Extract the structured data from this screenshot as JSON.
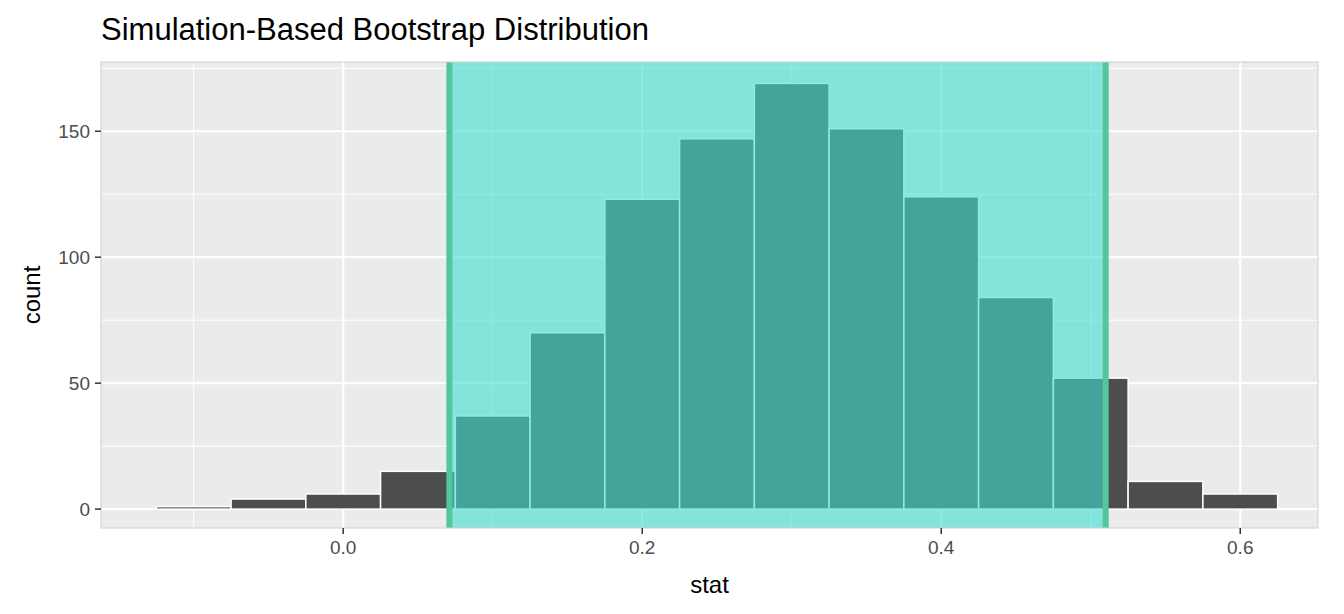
{
  "chart_data": {
    "type": "histogram",
    "title": "Simulation-Based Bootstrap Distribution",
    "x_label": "stat",
    "y_label": "count",
    "bins": [
      -0.125,
      -0.075,
      -0.025,
      0.025,
      0.075,
      0.125,
      0.175,
      0.225,
      0.275,
      0.325,
      0.375,
      0.425,
      0.475,
      0.525,
      0.575,
      0.625
    ],
    "values": [
      1,
      4,
      6,
      15,
      37,
      70,
      123,
      147,
      169,
      151,
      124,
      84,
      52,
      11,
      6
    ],
    "color": "#4d4d4d",
    "ci_endpoints": [
      0.071,
      0.51
    ],
    "xlim": [
      -0.162,
      0.652
    ],
    "xticks": [
      {
        "value": 0,
        "label": "0.0"
      },
      0.2,
      0.4,
      0.6
    ],
    "ylim": [
      -7.5,
      177.5
    ],
    "yticks": [
      0,
      50,
      100,
      150
    ],
    "grid": true
  }
}
